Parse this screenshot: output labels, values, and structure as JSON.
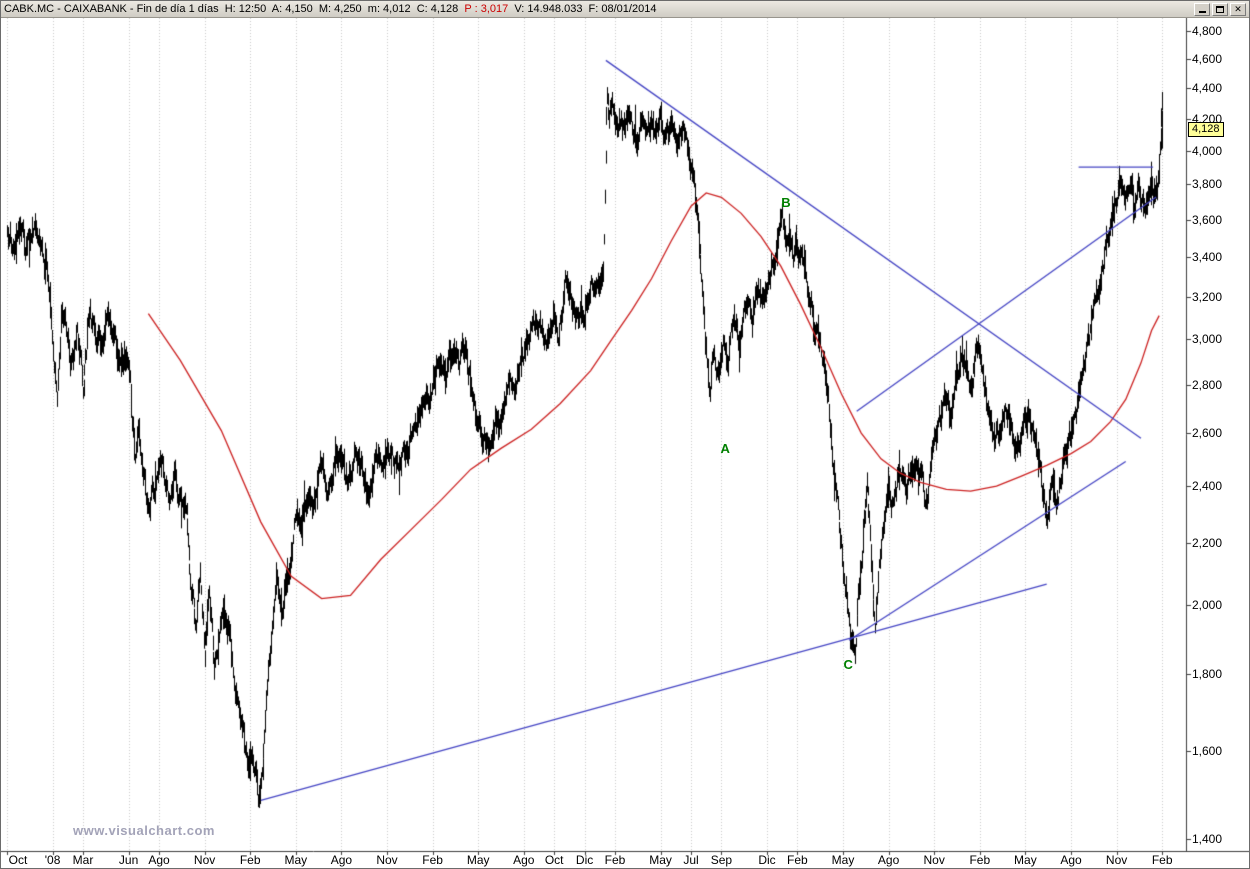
{
  "window": {
    "title_quote": "CABK.MC - CAIXABANK - Fin de día 1 días  H: 12:50  A: 4,150  M: 4,250  m: 4,012  C: 4,128  ",
    "title_prev": "P : 3,017",
    "title_tail": "  V: 14.948.033  F: 08/01/2014",
    "controls": [
      "minimize",
      "restore",
      "close"
    ]
  },
  "watermark": "www.visualchart.com",
  "colors": {
    "bars": "#000000",
    "ma": "#cc2020",
    "trendline": "#4444c4",
    "grid": "#c8c8c8",
    "axis": "#3c3c3c",
    "wave": "#008000",
    "tag_bg": "#ffff99",
    "title_red": "#cc0000"
  },
  "chart_data": {
    "type": "bar",
    "subtype": "daily OHLC price bars",
    "symbol": "CABK.MC",
    "company": "CAIXABANK",
    "timeframe": "Fin de día 1 días",
    "last": {
      "time": "12:50",
      "open": 4150,
      "high": 4250,
      "low": 4012,
      "close": 4128,
      "p": 3017,
      "volume": "14.948.033",
      "date": "08/01/2014"
    },
    "last_price_label": "4,128",
    "y_axis": {
      "scale": "logarithmic",
      "ticks": [
        4800,
        4600,
        4400,
        4200,
        4000,
        3800,
        3600,
        3400,
        3200,
        3000,
        2800,
        2600,
        2400,
        2200,
        2000,
        1800,
        1600,
        1400
      ]
    },
    "x_axis": {
      "description": "month ticks, m = months since Oct 2007",
      "ticks": [
        {
          "label": "Oct",
          "m": 0
        },
        {
          "label": "'08",
          "m": 3
        },
        {
          "label": "Mar",
          "m": 5
        },
        {
          "label": "Jun",
          "m": 8
        },
        {
          "label": "Ago",
          "m": 10
        },
        {
          "label": "Nov",
          "m": 13
        },
        {
          "label": "Feb",
          "m": 16
        },
        {
          "label": "May",
          "m": 19
        },
        {
          "label": "Ago",
          "m": 22
        },
        {
          "label": "Nov",
          "m": 25
        },
        {
          "label": "Feb",
          "m": 28
        },
        {
          "label": "May",
          "m": 31
        },
        {
          "label": "Ago",
          "m": 34
        },
        {
          "label": "Oct",
          "m": 36
        },
        {
          "label": "Dic",
          "m": 38
        },
        {
          "label": "Feb",
          "m": 40
        },
        {
          "label": "May",
          "m": 43
        },
        {
          "label": "Jul",
          "m": 45
        },
        {
          "label": "Sep",
          "m": 47
        },
        {
          "label": "Dic",
          "m": 50
        },
        {
          "label": "Feb",
          "m": 52
        },
        {
          "label": "May",
          "m": 55
        },
        {
          "label": "Ago",
          "m": 58
        },
        {
          "label": "Nov",
          "m": 61
        },
        {
          "label": "Feb",
          "m": 64
        },
        {
          "label": "May",
          "m": 67
        },
        {
          "label": "Ago",
          "m": 70
        },
        {
          "label": "Nov",
          "m": 73
        },
        {
          "label": "Feb",
          "m": 76
        }
      ]
    },
    "price_path": [
      [
        0,
        3560
      ],
      [
        0.4,
        3480
      ],
      [
        0.8,
        3560
      ],
      [
        1.2,
        3400
      ],
      [
        1.6,
        3480
      ],
      [
        2,
        3520
      ],
      [
        2.4,
        3400
      ],
      [
        2.8,
        3230
      ],
      [
        3.1,
        2900
      ],
      [
        3.3,
        2780
      ],
      [
        3.6,
        3180
      ],
      [
        3.9,
        3000
      ],
      [
        4.2,
        2860
      ],
      [
        4.6,
        3060
      ],
      [
        5,
        2800
      ],
      [
        5.4,
        3130
      ],
      [
        5.8,
        3050
      ],
      [
        6.2,
        2950
      ],
      [
        6.6,
        3060
      ],
      [
        7,
        2980
      ],
      [
        7.4,
        2900
      ],
      [
        7.8,
        2950
      ],
      [
        8.1,
        2870
      ],
      [
        8.4,
        2530
      ],
      [
        8.7,
        2620
      ],
      [
        9,
        2460
      ],
      [
        9.4,
        2310
      ],
      [
        9.8,
        2420
      ],
      [
        10.2,
        2510
      ],
      [
        10.6,
        2360
      ],
      [
        11,
        2470
      ],
      [
        11.4,
        2350
      ],
      [
        11.8,
        2290
      ],
      [
        12.1,
        2050
      ],
      [
        12.4,
        1960
      ],
      [
        12.7,
        2170
      ],
      [
        13,
        1880
      ],
      [
        13.3,
        2060
      ],
      [
        13.6,
        1830
      ],
      [
        13.9,
        1900
      ],
      [
        14.3,
        1990
      ],
      [
        14.7,
        1890
      ],
      [
        15,
        1750
      ],
      [
        15.4,
        1640
      ],
      [
        15.8,
        1560
      ],
      [
        16.1,
        1610
      ],
      [
        16.4,
        1520
      ],
      [
        16.6,
        1480
      ],
      [
        16.9,
        1610
      ],
      [
        17.2,
        1800
      ],
      [
        17.5,
        1950
      ],
      [
        17.8,
        2080
      ],
      [
        18.2,
        2020
      ],
      [
        18.6,
        2160
      ],
      [
        19,
        2340
      ],
      [
        19.4,
        2290
      ],
      [
        19.8,
        2420
      ],
      [
        20.3,
        2360
      ],
      [
        20.8,
        2480
      ],
      [
        21.3,
        2410
      ],
      [
        21.8,
        2490
      ],
      [
        22.3,
        2440
      ],
      [
        22.8,
        2520
      ],
      [
        23.3,
        2460
      ],
      [
        23.8,
        2420
      ],
      [
        24.3,
        2500
      ],
      [
        24.8,
        2460
      ],
      [
        25.3,
        2520
      ],
      [
        25.8,
        2460
      ],
      [
        26.3,
        2520
      ],
      [
        26.8,
        2590
      ],
      [
        27.3,
        2680
      ],
      [
        27.8,
        2760
      ],
      [
        28.3,
        2880
      ],
      [
        28.8,
        2830
      ],
      [
        29.3,
        2950
      ],
      [
        29.7,
        2890
      ],
      [
        30.1,
        2960
      ],
      [
        30.5,
        2820
      ],
      [
        30.9,
        2700
      ],
      [
        31.3,
        2590
      ],
      [
        31.7,
        2530
      ],
      [
        32.1,
        2680
      ],
      [
        32.5,
        2620
      ],
      [
        32.9,
        2750
      ],
      [
        33.4,
        2850
      ],
      [
        33.9,
        2940
      ],
      [
        34.4,
        3010
      ],
      [
        34.9,
        3090
      ],
      [
        35.4,
        3030
      ],
      [
        35.9,
        3110
      ],
      [
        36.3,
        3050
      ],
      [
        36.7,
        3220
      ],
      [
        37.1,
        3150
      ],
      [
        37.5,
        3080
      ],
      [
        37.9,
        3150
      ],
      [
        38.3,
        3260
      ],
      [
        38.7,
        3310
      ],
      [
        39,
        3230
      ],
      [
        39.25,
        3320
      ],
      [
        39.45,
        4420
      ],
      [
        39.6,
        4180
      ],
      [
        39.8,
        4300
      ],
      [
        40,
        4120
      ],
      [
        40.3,
        4250
      ],
      [
        40.6,
        4100
      ],
      [
        40.9,
        4280
      ],
      [
        41.2,
        4180
      ],
      [
        41.5,
        4060
      ],
      [
        41.8,
        4180
      ],
      [
        42.1,
        4090
      ],
      [
        42.4,
        4200
      ],
      [
        42.7,
        4120
      ],
      [
        43,
        4170
      ],
      [
        43.4,
        4060
      ],
      [
        43.8,
        4120
      ],
      [
        44.2,
        3990
      ],
      [
        44.6,
        4050
      ],
      [
        45,
        3930
      ],
      [
        45.3,
        3690
      ],
      [
        45.6,
        3350
      ],
      [
        45.9,
        3050
      ],
      [
        46.2,
        2760
      ],
      [
        46.5,
        2950
      ],
      [
        46.8,
        2820
      ],
      [
        47.1,
        2980
      ],
      [
        47.4,
        2870
      ],
      [
        47.8,
        3100
      ],
      [
        48.2,
        2980
      ],
      [
        48.6,
        3200
      ],
      [
        49,
        3090
      ],
      [
        49.4,
        3260
      ],
      [
        49.8,
        3160
      ],
      [
        50.2,
        3330
      ],
      [
        50.6,
        3450
      ],
      [
        51,
        3560
      ],
      [
        51.3,
        3470
      ],
      [
        51.6,
        3540
      ],
      [
        52,
        3410
      ],
      [
        52.4,
        3300
      ],
      [
        52.8,
        3180
      ],
      [
        53.2,
        3060
      ],
      [
        53.6,
        2890
      ],
      [
        54,
        2720
      ],
      [
        54.4,
        2480
      ],
      [
        54.8,
        2250
      ],
      [
        55.2,
        2050
      ],
      [
        55.5,
        1920
      ],
      [
        55.8,
        1870
      ],
      [
        56.1,
        2090
      ],
      [
        56.4,
        2320
      ],
      [
        56.6,
        2420
      ],
      [
        56.9,
        2120
      ],
      [
        57.1,
        1900
      ],
      [
        57.4,
        2130
      ],
      [
        57.7,
        2280
      ],
      [
        58,
        2440
      ],
      [
        58.4,
        2360
      ],
      [
        58.8,
        2480
      ],
      [
        59.2,
        2400
      ],
      [
        59.6,
        2490
      ],
      [
        60,
        2430
      ],
      [
        60.4,
        2340
      ],
      [
        60.8,
        2440
      ],
      [
        61.2,
        2560
      ],
      [
        61.6,
        2690
      ],
      [
        62,
        2630
      ],
      [
        62.4,
        2790
      ],
      [
        62.8,
        2940
      ],
      [
        63.1,
        2870
      ],
      [
        63.4,
        2750
      ],
      [
        63.7,
        2930
      ],
      [
        64,
        2960
      ],
      [
        64.4,
        2800
      ],
      [
        64.8,
        2650
      ],
      [
        65.2,
        2580
      ],
      [
        65.6,
        2690
      ],
      [
        66,
        2640
      ],
      [
        66.4,
        2540
      ],
      [
        66.8,
        2620
      ],
      [
        67.2,
        2680
      ],
      [
        67.6,
        2580
      ],
      [
        68,
        2460
      ],
      [
        68.4,
        2290
      ],
      [
        68.7,
        2400
      ],
      [
        69,
        2320
      ],
      [
        69.4,
        2450
      ],
      [
        69.8,
        2560
      ],
      [
        70.2,
        2650
      ],
      [
        70.6,
        2780
      ],
      [
        71,
        2950
      ],
      [
        71.4,
        3080
      ],
      [
        71.8,
        3220
      ],
      [
        72.2,
        3420
      ],
      [
        72.6,
        3600
      ],
      [
        73,
        3730
      ],
      [
        73.3,
        3810
      ],
      [
        73.6,
        3720
      ],
      [
        73.9,
        3790
      ],
      [
        74.2,
        3700
      ],
      [
        74.5,
        3780
      ],
      [
        74.8,
        3660
      ],
      [
        75.1,
        3740
      ],
      [
        75.4,
        3680
      ],
      [
        75.7,
        3800
      ],
      [
        75.85,
        3900
      ],
      [
        76,
        4250
      ]
    ],
    "ma_line": {
      "name": "long moving average",
      "color": "#cc2020",
      "points": [
        [
          9.3,
          3120
        ],
        [
          11.4,
          2905
        ],
        [
          14.1,
          2610
        ],
        [
          16.7,
          2270
        ],
        [
          18.7,
          2090
        ],
        [
          20.7,
          2020
        ],
        [
          22.6,
          2030
        ],
        [
          24.6,
          2145
        ],
        [
          26.6,
          2245
        ],
        [
          28.6,
          2350
        ],
        [
          30.5,
          2460
        ],
        [
          32.5,
          2540
        ],
        [
          34.5,
          2615
        ],
        [
          36.4,
          2720
        ],
        [
          38.4,
          2860
        ],
        [
          39.7,
          2990
        ],
        [
          41.1,
          3135
        ],
        [
          42.4,
          3290
        ],
        [
          43.7,
          3485
        ],
        [
          45,
          3675
        ],
        [
          46,
          3750
        ],
        [
          47,
          3725
        ],
        [
          48.3,
          3635
        ],
        [
          49.6,
          3510
        ],
        [
          50.9,
          3355
        ],
        [
          52.2,
          3165
        ],
        [
          53.6,
          2955
        ],
        [
          54.9,
          2760
        ],
        [
          56.2,
          2600
        ],
        [
          57.5,
          2500
        ],
        [
          58.8,
          2445
        ],
        [
          60.1,
          2412
        ],
        [
          61.8,
          2386
        ],
        [
          63.4,
          2380
        ],
        [
          65.1,
          2398
        ],
        [
          66.7,
          2434
        ],
        [
          68.4,
          2475
        ],
        [
          70,
          2520
        ],
        [
          71.3,
          2567
        ],
        [
          72.6,
          2646
        ],
        [
          73.6,
          2737
        ],
        [
          74.6,
          2893
        ],
        [
          75.3,
          3040
        ],
        [
          75.8,
          3110
        ]
      ]
    },
    "trendlines": [
      {
        "name": "descending-from-2011-high",
        "t1": 39.4,
        "p1": 4590,
        "t2": 74.6,
        "p2": 2580
      },
      {
        "name": "long-term-rising-support",
        "t1": 16.7,
        "p1": 1485,
        "t2": 68.4,
        "p2": 2065
      },
      {
        "name": "rising-support-from-2012-low",
        "t1": 55.4,
        "p1": 1896,
        "t2": 73.6,
        "p2": 2490
      },
      {
        "name": "rising-channel-line",
        "t1": 55.9,
        "p1": 2688,
        "t2": 75.6,
        "p2": 3727
      },
      {
        "name": "horizontal-resistance",
        "t1": 70.5,
        "p1": 3900,
        "t2": 75.4,
        "p2": 3900
      }
    ],
    "wave_labels": [
      {
        "text": "A",
        "t": 47.2,
        "price": 2537
      },
      {
        "text": "B",
        "t": 51.2,
        "price": 3692
      },
      {
        "text": "C",
        "t": 55.3,
        "price": 1826
      }
    ]
  }
}
